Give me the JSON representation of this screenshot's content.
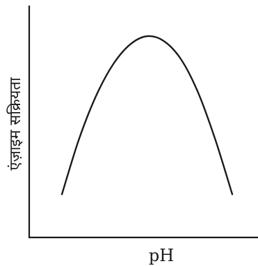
{
  "chart_data": {
    "type": "line",
    "xlabel": "pH",
    "ylabel": "एंज़ाइम सक्रियता",
    "x": [
      0,
      1,
      2,
      3,
      4,
      5,
      6,
      7,
      8,
      9,
      10
    ],
    "series": [
      {
        "values": [
          0.05,
          0.38,
          0.64,
          0.83,
          0.95,
          1.0,
          0.97,
          0.86,
          0.66,
          0.38,
          0.05
        ]
      }
    ],
    "grid": false,
    "line_color": "#1a1a1a"
  }
}
